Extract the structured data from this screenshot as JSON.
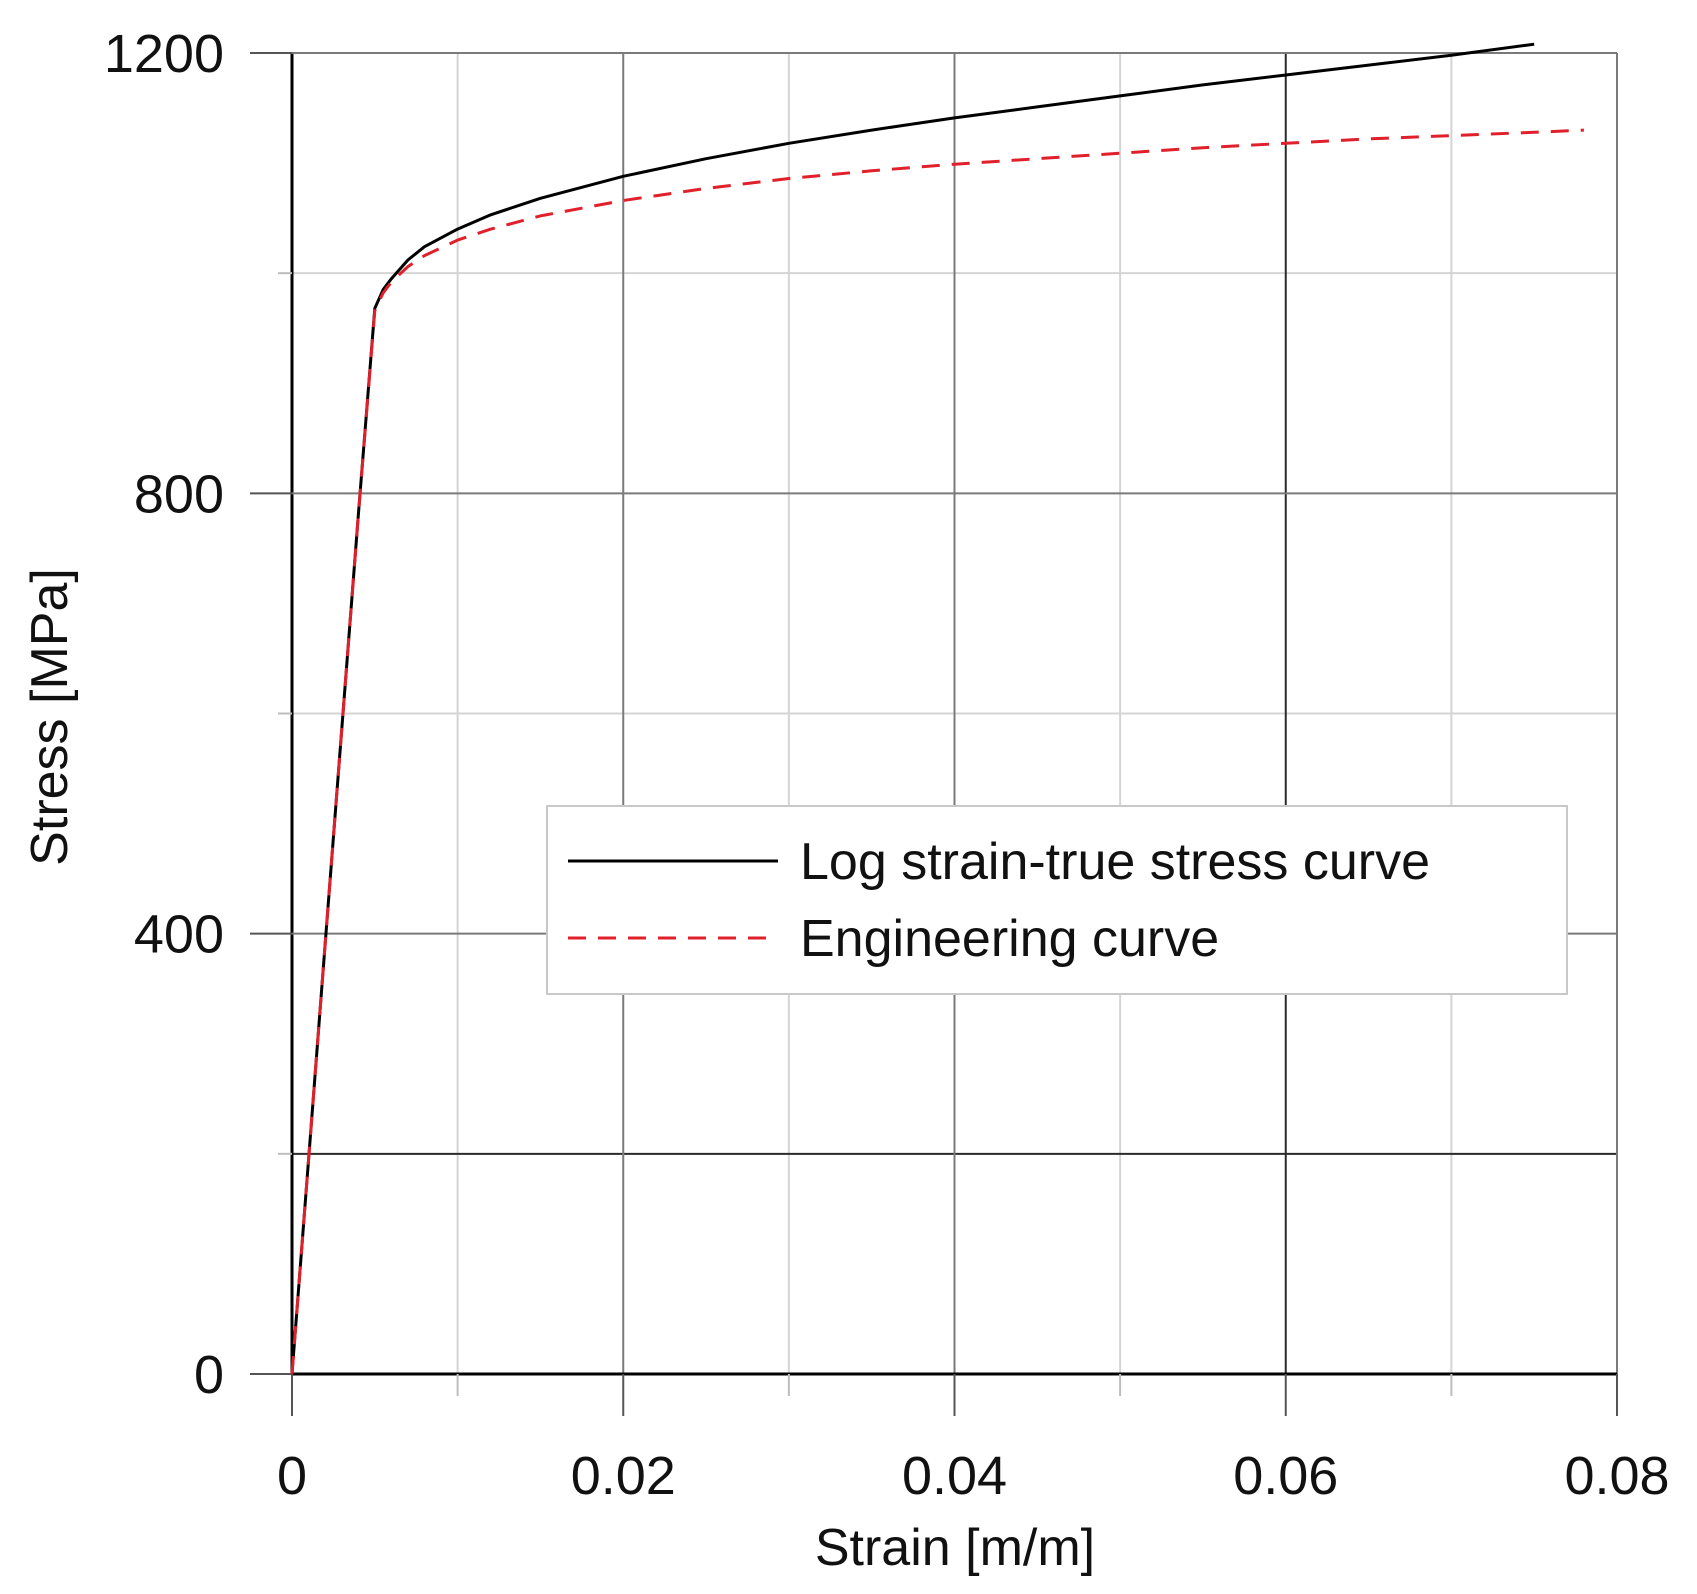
{
  "chart_data": {
    "type": "line",
    "xlabel": "Strain [m/m]",
    "ylabel": "Stress [MPa]",
    "xlim": [
      0,
      0.08
    ],
    "ylim": [
      0,
      1200
    ],
    "x_major_ticks": [
      0,
      0.02,
      0.04,
      0.06,
      0.08
    ],
    "x_tick_labels": [
      "0",
      "0.02",
      "0.04",
      "0.06",
      "0.08"
    ],
    "x_minor_ticks": [
      0.01,
      0.03,
      0.05,
      0.07
    ],
    "y_major_ticks": [
      0,
      400,
      800,
      1200
    ],
    "y_tick_labels": [
      "0",
      "400",
      "800",
      "1200"
    ],
    "y_minor_ticks": [
      200,
      600,
      1000
    ],
    "grid": true,
    "legend_position": "center-right",
    "series": [
      {
        "name": "Log strain-true stress curve",
        "style": "solid",
        "color": "#000000",
        "x": [
          0,
          0.001,
          0.002,
          0.003,
          0.004,
          0.005,
          0.0055,
          0.006,
          0.007,
          0.008,
          0.01,
          0.012,
          0.015,
          0.02,
          0.025,
          0.03,
          0.035,
          0.04,
          0.045,
          0.05,
          0.055,
          0.06,
          0.065,
          0.07,
          0.075
        ],
        "y": [
          0,
          195,
          390,
          585,
          780,
          968,
          985,
          995,
          1012,
          1024,
          1040,
          1053,
          1068,
          1088,
          1104,
          1118,
          1130,
          1141,
          1151,
          1161,
          1171,
          1180,
          1189,
          1198,
          1208
        ]
      },
      {
        "name": "Engineering curve",
        "style": "dashed",
        "color": "#e0202a",
        "x": [
          0,
          0.001,
          0.002,
          0.003,
          0.004,
          0.005,
          0.0055,
          0.006,
          0.007,
          0.008,
          0.01,
          0.012,
          0.015,
          0.02,
          0.025,
          0.03,
          0.035,
          0.04,
          0.045,
          0.05,
          0.055,
          0.06,
          0.065,
          0.07,
          0.075,
          0.078
        ],
        "y": [
          0,
          195,
          390,
          585,
          780,
          966,
          982,
          992,
          1006,
          1016,
          1030,
          1040,
          1052,
          1066,
          1077,
          1086,
          1093,
          1099,
          1104,
          1109,
          1114,
          1118,
          1122,
          1125,
          1128,
          1130
        ]
      }
    ]
  }
}
